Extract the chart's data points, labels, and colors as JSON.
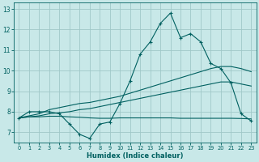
{
  "xlabel": "Humidex (Indice chaleur)",
  "bg_color": "#c8e8e8",
  "grid_color": "#a0c8c8",
  "line_color": "#006060",
  "x": [
    0,
    1,
    2,
    3,
    4,
    5,
    6,
    7,
    8,
    9,
    10,
    11,
    12,
    13,
    14,
    15,
    16,
    17,
    18,
    19,
    20,
    21,
    22,
    23
  ],
  "line_main": [
    7.7,
    8.0,
    8.0,
    8.0,
    7.9,
    7.4,
    6.9,
    6.7,
    7.4,
    7.5,
    8.4,
    9.5,
    10.8,
    11.4,
    12.3,
    12.8,
    11.6,
    11.8,
    11.4,
    10.35,
    10.1,
    9.4,
    7.9,
    7.55
  ],
  "line_trend_upper": [
    7.7,
    7.8,
    7.9,
    8.1,
    8.2,
    8.3,
    8.4,
    8.45,
    8.55,
    8.65,
    8.75,
    8.9,
    9.05,
    9.2,
    9.35,
    9.5,
    9.65,
    9.8,
    9.95,
    10.1,
    10.2,
    10.2,
    10.1,
    9.95
  ],
  "line_trend_mid": [
    7.7,
    7.75,
    7.8,
    7.9,
    7.95,
    8.0,
    8.1,
    8.15,
    8.25,
    8.35,
    8.45,
    8.55,
    8.65,
    8.75,
    8.85,
    8.95,
    9.05,
    9.15,
    9.25,
    9.35,
    9.45,
    9.45,
    9.35,
    9.25
  ],
  "line_flat": [
    7.7,
    7.75,
    7.75,
    7.78,
    7.78,
    7.75,
    7.73,
    7.7,
    7.68,
    7.68,
    7.7,
    7.7,
    7.7,
    7.7,
    7.7,
    7.7,
    7.68,
    7.68,
    7.68,
    7.68,
    7.68,
    7.68,
    7.67,
    7.65
  ],
  "ylim": [
    6.5,
    13.3
  ],
  "xlim": [
    -0.5,
    23.5
  ],
  "yticks": [
    7,
    8,
    9,
    10,
    11,
    12,
    13
  ],
  "xticks": [
    0,
    1,
    2,
    3,
    4,
    5,
    6,
    7,
    8,
    9,
    10,
    11,
    12,
    13,
    14,
    15,
    16,
    17,
    18,
    19,
    20,
    21,
    22,
    23
  ]
}
